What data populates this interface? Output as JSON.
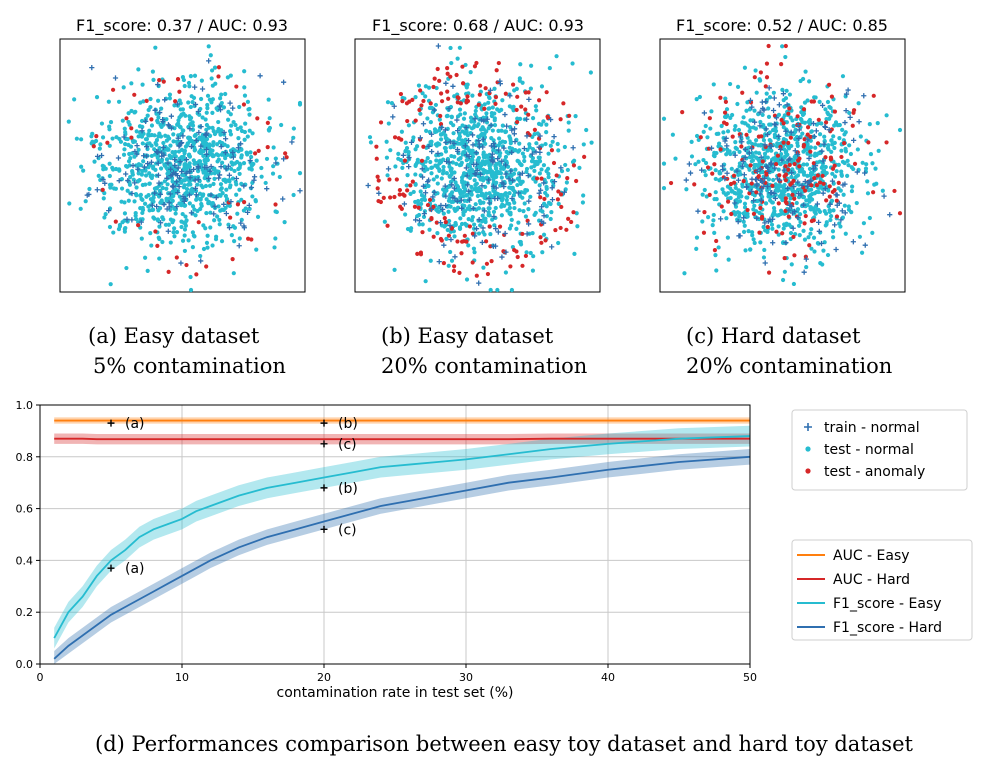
{
  "chart_data": [
    {
      "type": "scatter",
      "panel": "a",
      "title": "F1_score: 0.37 / AUC: 0.93",
      "caption_line1": "(a) Easy dataset",
      "caption_line2": "5% contamination",
      "contamination": 0.05,
      "anomaly_mode": "easy",
      "series": [
        {
          "name": "train - normal",
          "marker": "+",
          "color": "#2f6fb0"
        },
        {
          "name": "test - normal",
          "marker": "o",
          "color": "#26bcd0"
        },
        {
          "name": "test - anomaly",
          "marker": "o",
          "color": "#d62728"
        }
      ]
    },
    {
      "type": "scatter",
      "panel": "b",
      "title": "F1_score: 0.68 / AUC: 0.93",
      "caption_line1": "(b) Easy dataset",
      "caption_line2": "20% contamination",
      "contamination": 0.2,
      "anomaly_mode": "easy",
      "series": [
        {
          "name": "train - normal",
          "marker": "+",
          "color": "#2f6fb0"
        },
        {
          "name": "test - normal",
          "marker": "o",
          "color": "#26bcd0"
        },
        {
          "name": "test - anomaly",
          "marker": "o",
          "color": "#d62728"
        }
      ]
    },
    {
      "type": "scatter",
      "panel": "c",
      "title": "F1_score: 0.52 / AUC: 0.85",
      "caption_line1": "(c) Hard dataset",
      "caption_line2": "20% contamination",
      "contamination": 0.2,
      "anomaly_mode": "hard",
      "series": [
        {
          "name": "train - normal",
          "marker": "+",
          "color": "#2f6fb0"
        },
        {
          "name": "test - normal",
          "marker": "o",
          "color": "#26bcd0"
        },
        {
          "name": "test - anomaly",
          "marker": "o",
          "color": "#d62728"
        }
      ]
    },
    {
      "type": "line",
      "panel": "d",
      "caption": "(d) Performances comparison between easy toy dataset and hard toy dataset",
      "xlabel": "contamination rate in test set (%)",
      "ylabel": "",
      "xlim": [
        0,
        50
      ],
      "ylim": [
        0,
        1.0
      ],
      "xticks": [
        0,
        10,
        20,
        30,
        40,
        50
      ],
      "yticks": [
        0.0,
        0.2,
        0.4,
        0.6,
        0.8,
        1.0
      ],
      "grid": true,
      "x": [
        1,
        2,
        3,
        4,
        5,
        6,
        7,
        8,
        9,
        10,
        11,
        12,
        14,
        16,
        18,
        20,
        22,
        24,
        26,
        28,
        30,
        33,
        36,
        40,
        45,
        50
      ],
      "series": [
        {
          "name": "AUC - Easy",
          "color": "#ff7f0e",
          "values": [
            0.94,
            0.94,
            0.94,
            0.94,
            0.94,
            0.94,
            0.94,
            0.94,
            0.94,
            0.94,
            0.94,
            0.94,
            0.94,
            0.94,
            0.94,
            0.94,
            0.94,
            0.94,
            0.94,
            0.94,
            0.94,
            0.94,
            0.94,
            0.94,
            0.94,
            0.94
          ],
          "band": 0.012
        },
        {
          "name": "AUC - Hard",
          "color": "#d62728",
          "values": [
            0.87,
            0.87,
            0.87,
            0.868,
            0.868,
            0.868,
            0.868,
            0.868,
            0.868,
            0.868,
            0.868,
            0.868,
            0.868,
            0.868,
            0.868,
            0.868,
            0.868,
            0.868,
            0.868,
            0.868,
            0.868,
            0.868,
            0.87,
            0.87,
            0.87,
            0.87
          ],
          "band": 0.02
        },
        {
          "name": "F1_score - Easy",
          "color": "#26bcd0",
          "values": [
            0.1,
            0.2,
            0.26,
            0.34,
            0.4,
            0.44,
            0.49,
            0.52,
            0.54,
            0.56,
            0.59,
            0.61,
            0.65,
            0.68,
            0.7,
            0.72,
            0.74,
            0.76,
            0.77,
            0.78,
            0.79,
            0.81,
            0.83,
            0.85,
            0.87,
            0.88
          ],
          "band": 0.04
        },
        {
          "name": "F1_score - Hard",
          "color": "#2f6fb0",
          "values": [
            0.02,
            0.07,
            0.11,
            0.15,
            0.19,
            0.22,
            0.25,
            0.28,
            0.31,
            0.34,
            0.37,
            0.4,
            0.45,
            0.49,
            0.52,
            0.55,
            0.58,
            0.61,
            0.63,
            0.65,
            0.67,
            0.7,
            0.72,
            0.75,
            0.78,
            0.8
          ],
          "band": 0.03
        }
      ],
      "markers": [
        {
          "label": "(a)",
          "x": 5,
          "y": 0.93
        },
        {
          "label": "(b)",
          "x": 20,
          "y": 0.93
        },
        {
          "label": "(c)",
          "x": 20,
          "y": 0.85
        },
        {
          "label": "(b)",
          "x": 20,
          "y": 0.68
        },
        {
          "label": "(a)",
          "x": 5,
          "y": 0.37
        },
        {
          "label": "(c)",
          "x": 20,
          "y": 0.52
        }
      ]
    }
  ],
  "legend_scatter": [
    "train - normal",
    "test - normal",
    "test - anomaly"
  ],
  "legend_lines": [
    "AUC - Easy",
    "AUC - Hard",
    "F1_score - Easy",
    "F1_score - Hard"
  ]
}
